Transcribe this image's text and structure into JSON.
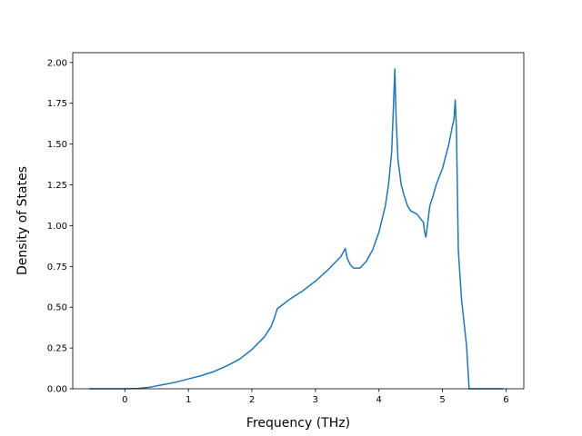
{
  "chart_data": {
    "type": "line",
    "title": "",
    "xlabel": "Frequency (THz)",
    "ylabel": "Density of States",
    "xlim": [
      -0.82,
      6.28
    ],
    "ylim": [
      0.0,
      2.06
    ],
    "grid": false,
    "legend": "none",
    "line_color": "#1f77b4",
    "xticks": [
      0,
      1,
      2,
      3,
      4,
      5,
      6
    ],
    "xtick_labels": [
      "0",
      "1",
      "2",
      "3",
      "4",
      "5",
      "6"
    ],
    "yticks": [
      0.0,
      0.25,
      0.5,
      0.75,
      1.0,
      1.25,
      1.5,
      1.75,
      2.0
    ],
    "ytick_labels": [
      "0.00",
      "0.25",
      "0.50",
      "0.75",
      "1.00",
      "1.25",
      "1.50",
      "1.75",
      "2.00"
    ],
    "series": [
      {
        "x": [
          -0.55,
          -0.3,
          0.0,
          0.2,
          0.4,
          0.6,
          0.8,
          1.0,
          1.2,
          1.4,
          1.6,
          1.8,
          2.0,
          2.1,
          2.2,
          2.3,
          2.35,
          2.4,
          2.5,
          2.6,
          2.8,
          3.0,
          3.2,
          3.4,
          3.47,
          3.5,
          3.55,
          3.6,
          3.7,
          3.8,
          3.9,
          4.0,
          4.1,
          4.15,
          4.2,
          4.23,
          4.25,
          4.27,
          4.3,
          4.35,
          4.4,
          4.45,
          4.5,
          4.6,
          4.7,
          4.72,
          4.74,
          4.76,
          4.8,
          4.85,
          4.9,
          5.0,
          5.1,
          5.15,
          5.18,
          5.2,
          5.22,
          5.25,
          5.3,
          5.38,
          5.42,
          5.5,
          5.7,
          5.95
        ],
        "y": [
          0.0,
          0.0,
          0.0,
          0.002,
          0.01,
          0.025,
          0.04,
          0.06,
          0.08,
          0.105,
          0.14,
          0.18,
          0.24,
          0.28,
          0.32,
          0.38,
          0.43,
          0.49,
          0.52,
          0.55,
          0.6,
          0.66,
          0.73,
          0.81,
          0.86,
          0.8,
          0.76,
          0.74,
          0.74,
          0.78,
          0.85,
          0.96,
          1.12,
          1.25,
          1.45,
          1.75,
          1.96,
          1.65,
          1.4,
          1.25,
          1.18,
          1.12,
          1.09,
          1.07,
          1.02,
          0.96,
          0.93,
          0.99,
          1.12,
          1.18,
          1.25,
          1.35,
          1.5,
          1.6,
          1.65,
          1.77,
          1.6,
          0.85,
          0.55,
          0.26,
          0.0,
          0.0,
          0.0,
          0.0
        ]
      }
    ]
  }
}
